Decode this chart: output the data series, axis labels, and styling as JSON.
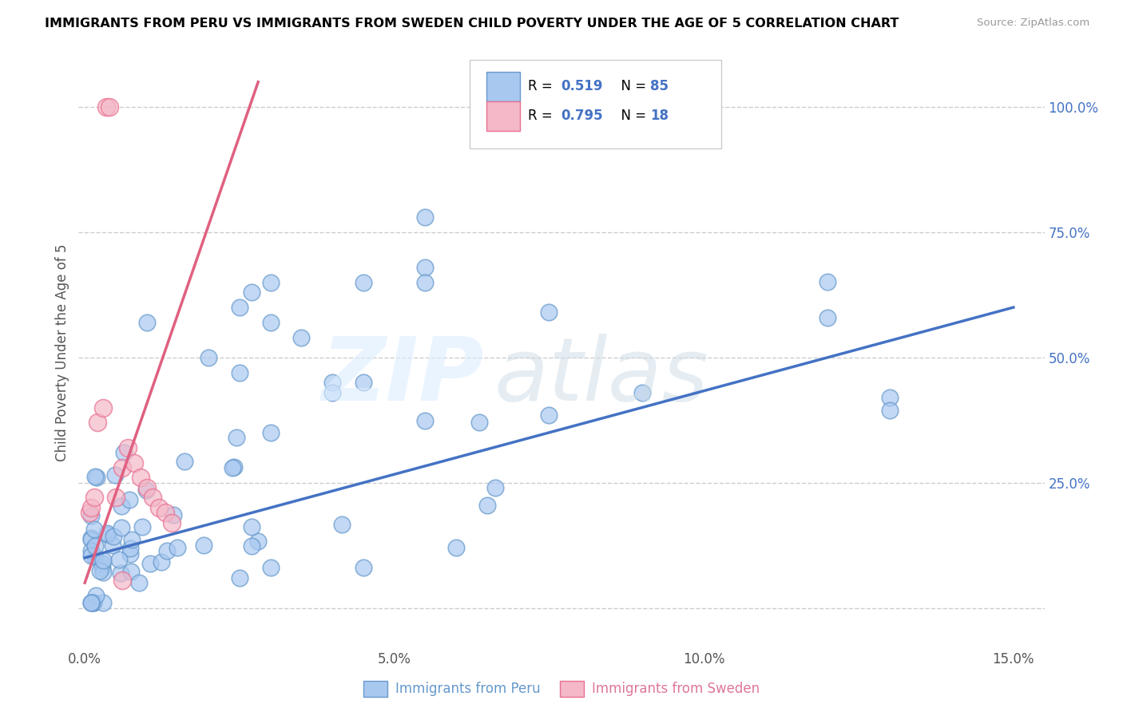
{
  "title": "IMMIGRANTS FROM PERU VS IMMIGRANTS FROM SWEDEN CHILD POVERTY UNDER THE AGE OF 5 CORRELATION CHART",
  "source": "Source: ZipAtlas.com",
  "xlabel_peru": "Immigrants from Peru",
  "xlabel_sweden": "Immigrants from Sweden",
  "ylabel": "Child Poverty Under the Age of 5",
  "peru_R": 0.519,
  "peru_N": 85,
  "sweden_R": 0.795,
  "sweden_N": 18,
  "peru_color": "#a8c8f0",
  "sweden_color": "#f4b8c8",
  "peru_edge_color": "#6699cc",
  "sweden_edge_color": "#e87090",
  "peru_line_color": "#4472c4",
  "sweden_line_color": "#e06080",
  "blue_text_color": "#4472c4",
  "watermark_zip_color": "#d8e8f8",
  "watermark_atlas_color": "#c8d8e8",
  "peru_line_x0": 0.0,
  "peru_line_y0": 0.1,
  "peru_line_x1": 0.15,
  "peru_line_y1": 0.6,
  "sweden_line_x0": 0.0,
  "sweden_line_y0": 0.05,
  "sweden_line_x1": 0.028,
  "sweden_line_y1": 1.05,
  "xlim_min": -0.001,
  "xlim_max": 0.155,
  "ylim_min": -0.08,
  "ylim_max": 1.1,
  "xticks": [
    0.0,
    0.05,
    0.1,
    0.15
  ],
  "xticklabels": [
    "0.0%",
    "5.0%",
    "10.0%",
    "15.0%"
  ],
  "yticks_right": [
    0.25,
    0.5,
    0.75,
    1.0
  ],
  "yticklabels_right": [
    "25.0%",
    "50.0%",
    "75.0%",
    "100.0%"
  ],
  "grid_yticks": [
    0.0,
    0.25,
    0.5,
    0.75,
    1.0
  ]
}
